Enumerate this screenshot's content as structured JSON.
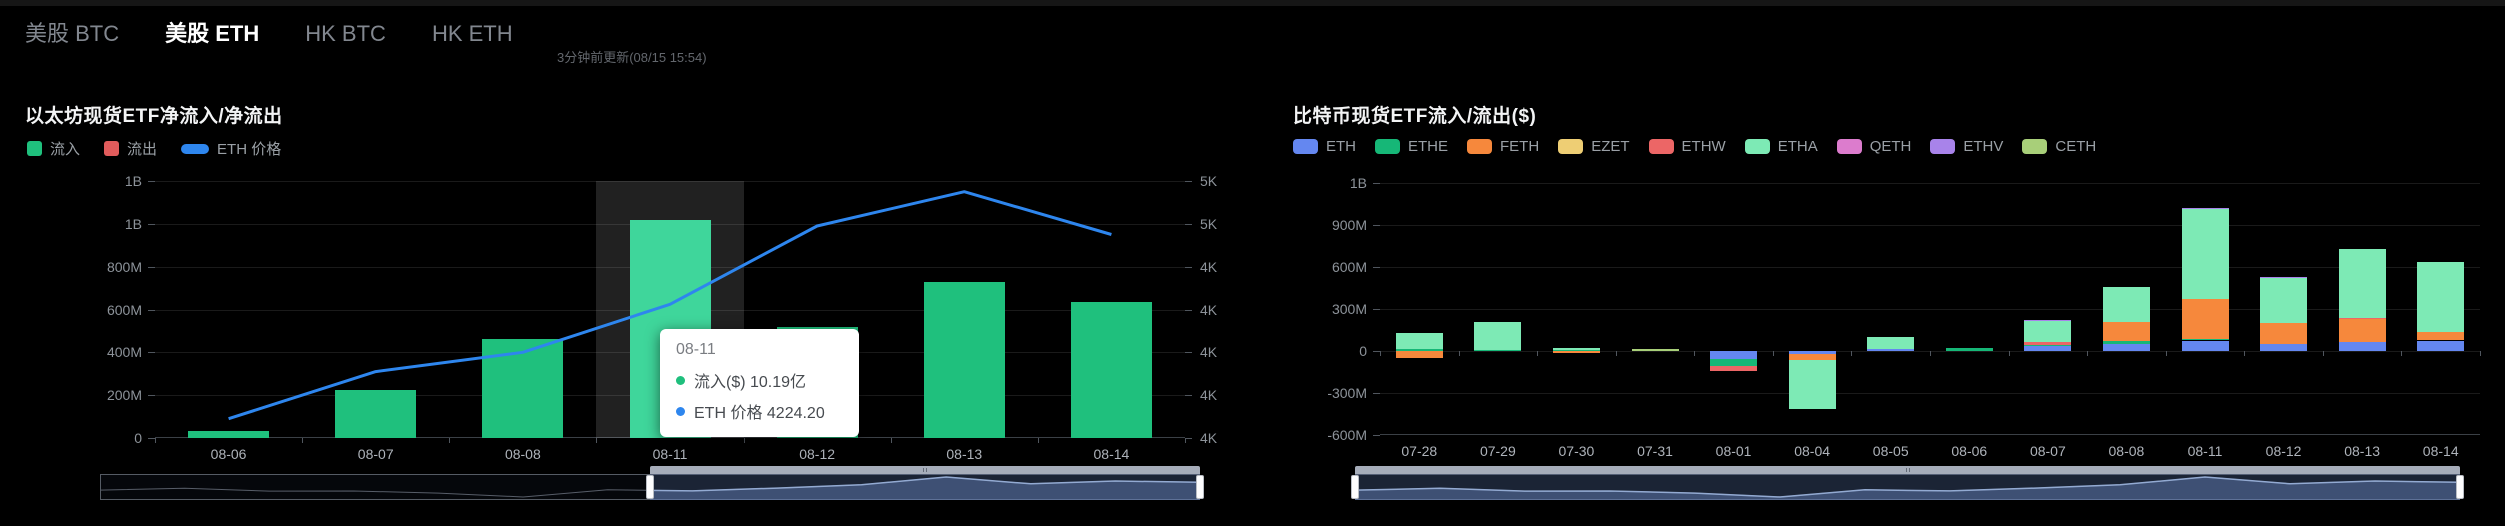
{
  "header": {
    "tabs": [
      {
        "key": "us-btc",
        "label": "美股 BTC",
        "active": false
      },
      {
        "key": "us-eth",
        "label": "美股 ETH",
        "active": true
      },
      {
        "key": "hk-btc",
        "label": "HK BTC",
        "active": false
      },
      {
        "key": "hk-eth",
        "label": "HK ETH",
        "active": false
      }
    ],
    "update_note": "3分钟前更新(08/15 15:54)"
  },
  "chart_data": [
    {
      "id": "eth-spot-etf-net-flow",
      "type": "bar",
      "title": "以太坊现货ETF净流入/净流出",
      "categories": [
        "08-06",
        "08-07",
        "08-08",
        "08-11",
        "08-12",
        "08-13",
        "08-14"
      ],
      "highlight_index": 3,
      "series": [
        {
          "key": "inflow",
          "name": "流入",
          "type": "bar",
          "color": "#1fc07d",
          "highlight_color": "#3fd69b",
          "unit": "$M",
          "values": [
            35,
            225,
            460,
            1019,
            520,
            730,
            635
          ]
        },
        {
          "key": "outflow",
          "name": "流出",
          "type": "bar",
          "color": "#e15c5c",
          "unit": "$M",
          "values": [
            0,
            0,
            0,
            0,
            0,
            0,
            0
          ]
        },
        {
          "key": "eth-price",
          "name": "ETH 价格",
          "type": "line",
          "color": "#2e86ee",
          "axis": "right",
          "unit": "$",
          "values": [
            3690,
            3910,
            4000,
            4224.2,
            4590,
            4750,
            4550
          ]
        }
      ],
      "y_left": {
        "min": 0,
        "max": 1200,
        "step": 200,
        "tick_labels": [
          "0",
          "200M",
          "400M",
          "600M",
          "800M",
          "1B",
          "1B"
        ]
      },
      "y_right": {
        "min": 3600,
        "max": 4800,
        "step": 200,
        "tick_labels": [
          "4K",
          "4K",
          "4K",
          "4K",
          "4K",
          "5K",
          "5K"
        ]
      },
      "tooltip": {
        "title": "08-11",
        "rows": [
          {
            "key": "inflow",
            "marker_color": "#1fbf7d",
            "label": "流入($)",
            "value": "10.19亿"
          },
          {
            "key": "eth-price",
            "marker_color": "#2e86ee",
            "label": "ETH 价格",
            "value": "4224.20"
          }
        ]
      },
      "legend_position": "top-left",
      "grid": true
    },
    {
      "id": "etf-flow-by-fund",
      "type": "stacked-bar",
      "title": "比特币现货ETF流入/流出($)",
      "categories": [
        "07-28",
        "07-29",
        "07-30",
        "07-31",
        "08-01",
        "08-04",
        "08-05",
        "08-06",
        "08-07",
        "08-08",
        "08-11",
        "08-12",
        "08-13",
        "08-14"
      ],
      "series": [
        {
          "key": "eth",
          "name": "ETH",
          "color": "#6487f0",
          "unit": "$M",
          "values": [
            0,
            0,
            0,
            0,
            -58,
            -22,
            16,
            0,
            35,
            51,
            75,
            51,
            63,
            75
          ]
        },
        {
          "key": "ethe",
          "name": "ETHE",
          "color": "#16b777",
          "unit": "$M",
          "values": [
            16,
            10,
            7,
            0,
            -49,
            0,
            0,
            22,
            10,
            19,
            12,
            0,
            0,
            0
          ]
        },
        {
          "key": "feth",
          "name": "FETH",
          "color": "#f6883c",
          "unit": "$M",
          "values": [
            -51,
            0,
            -13,
            0,
            0,
            -44,
            0,
            0,
            0,
            140,
            281,
            152,
            164,
            59
          ]
        },
        {
          "key": "ezet",
          "name": "EZET",
          "color": "#eece74",
          "unit": "$M",
          "values": [
            0,
            0,
            0,
            0,
            0,
            0,
            0,
            0,
            0,
            0,
            0,
            0,
            0,
            0
          ]
        },
        {
          "key": "ethw",
          "name": "ETHW",
          "color": "#ec6666",
          "unit": "$M",
          "values": [
            0,
            0,
            0,
            0,
            -33,
            0,
            0,
            0,
            20,
            0,
            0,
            0,
            7,
            0
          ]
        },
        {
          "key": "etha",
          "name": "ETHA",
          "color": "#7deab5",
          "unit": "$M",
          "values": [
            111,
            195,
            16,
            0,
            0,
            -351,
            82,
            0,
            150,
            250,
            644,
            316,
            496,
            503
          ]
        },
        {
          "key": "qeth",
          "name": "QETH",
          "color": "#dc7ccd",
          "unit": "$M",
          "values": [
            0,
            0,
            0,
            0,
            0,
            0,
            0,
            0,
            0,
            0,
            0,
            0,
            0,
            0
          ]
        },
        {
          "key": "ethv",
          "name": "ETHV",
          "color": "#a883ea",
          "unit": "$M",
          "values": [
            0,
            0,
            0,
            0,
            0,
            0,
            0,
            0,
            8,
            0,
            7,
            12,
            0,
            0
          ]
        },
        {
          "key": "ceth",
          "name": "CETH",
          "color": "#a8cf79",
          "unit": "$M",
          "values": [
            0,
            0,
            0,
            13,
            0,
            0,
            0,
            0,
            0,
            0,
            0,
            0,
            0,
            0
          ]
        }
      ],
      "y": {
        "min": -600,
        "max": 1200,
        "step": 300,
        "tick_labels": [
          "-600M",
          "-300M",
          "0",
          "300M",
          "600M",
          "900M",
          "1B"
        ]
      },
      "legend_position": "top-left",
      "grid": true
    }
  ],
  "data_zoom": {
    "left_slider": {
      "start_percent": 50,
      "end_percent": 100
    },
    "right_slider": {
      "start_percent": 0,
      "end_percent": 100
    }
  }
}
